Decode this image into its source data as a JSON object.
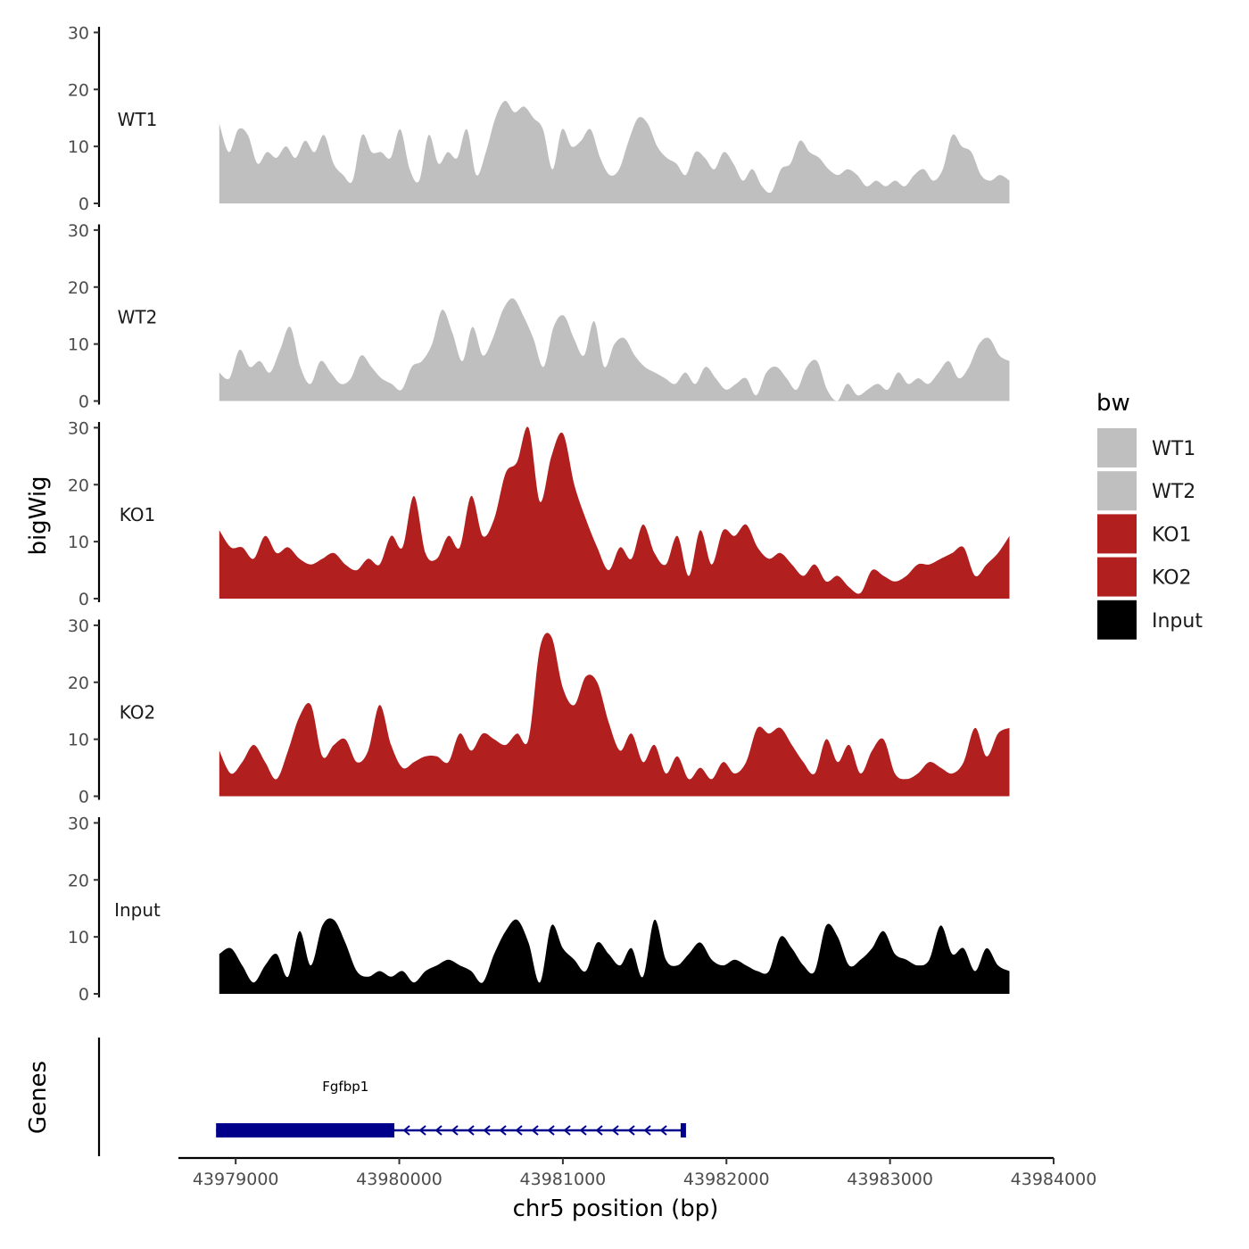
{
  "chart_data": {
    "type": "area",
    "title": "",
    "ylabel": "bigWig",
    "gene_track_label": "Genes",
    "xlabel": "chr5 position (bp)",
    "x_ticks": [
      43979000,
      43980000,
      43981000,
      43982000,
      43983000,
      43984000
    ],
    "x_tick_labels": [
      "43979000",
      "43980000",
      "43981000",
      "43982000",
      "43983000",
      "43984000"
    ],
    "xlim": [
      43978650,
      43984000
    ],
    "ylim": [
      0,
      31
    ],
    "y_ticks": [
      0,
      10,
      20,
      30
    ],
    "y_tick_labels": [
      "0",
      "10",
      "20",
      "30"
    ],
    "region": [
      43978900,
      43983730
    ],
    "series": [
      {
        "name": "WT1",
        "color": "#bfbfbf",
        "values": [
          14,
          9,
          13,
          12,
          7,
          9,
          8,
          10,
          8,
          11,
          9,
          12,
          7,
          5,
          4,
          12,
          9,
          9,
          8,
          13,
          6,
          4,
          12,
          7,
          9,
          8,
          13,
          5,
          9,
          15,
          18,
          16,
          17,
          15,
          13,
          6,
          13,
          10,
          11,
          13,
          8,
          5,
          6,
          11,
          15,
          14,
          10,
          8,
          7,
          5,
          9,
          8,
          6,
          9,
          7,
          4,
          6,
          3,
          2,
          6,
          7,
          11,
          9,
          8,
          6,
          5,
          6,
          5,
          3,
          4,
          3,
          4,
          3,
          5,
          6,
          4,
          6,
          12,
          10,
          9,
          5,
          4,
          5,
          4
        ]
      },
      {
        "name": "WT2",
        "color": "#bfbfbf",
        "values": [
          5,
          4,
          9,
          6,
          7,
          5,
          9,
          13,
          6,
          3,
          7,
          5,
          3,
          4,
          8,
          6,
          4,
          3,
          2,
          6,
          7,
          10,
          16,
          12,
          7,
          13,
          8,
          11,
          16,
          18,
          15,
          11,
          6,
          13,
          15,
          11,
          8,
          14,
          6,
          10,
          11,
          8,
          6,
          5,
          4,
          3,
          5,
          3,
          6,
          4,
          2,
          3,
          4,
          1,
          5,
          6,
          4,
          2,
          6,
          7,
          2,
          0,
          3,
          1,
          2,
          3,
          2,
          5,
          3,
          4,
          3,
          5,
          7,
          4,
          6,
          10,
          11,
          8,
          7
        ]
      },
      {
        "name": "KO1",
        "color": "#b21f1f",
        "values": [
          12,
          9,
          9,
          7,
          11,
          8,
          9,
          7,
          6,
          7,
          8,
          6,
          5,
          7,
          6,
          11,
          9,
          18,
          8,
          7,
          11,
          9,
          18,
          11,
          14,
          22,
          24,
          30,
          17,
          25,
          29,
          20,
          14,
          9,
          5,
          9,
          7,
          13,
          8,
          6,
          11,
          4,
          12,
          6,
          12,
          11,
          13,
          9,
          7,
          8,
          6,
          4,
          6,
          3,
          4,
          2,
          1,
          5,
          4,
          3,
          4,
          6,
          6,
          7,
          8,
          9,
          4,
          6,
          8,
          11
        ]
      },
      {
        "name": "KO2",
        "color": "#b21f1f",
        "values": [
          8,
          4,
          6,
          9,
          6,
          3,
          8,
          14,
          16,
          7,
          9,
          10,
          6,
          8,
          16,
          9,
          5,
          6,
          7,
          7,
          6,
          11,
          8,
          11,
          10,
          9,
          11,
          10,
          26,
          28,
          19,
          16,
          21,
          20,
          13,
          8,
          11,
          6,
          9,
          4,
          7,
          3,
          5,
          3,
          6,
          4,
          6,
          12,
          11,
          12,
          9,
          6,
          4,
          10,
          6,
          9,
          4,
          8,
          10,
          4,
          3,
          4,
          6,
          5,
          4,
          6,
          12,
          7,
          11,
          12
        ]
      },
      {
        "name": "Input",
        "color": "#000000",
        "values": [
          7,
          8,
          5,
          2,
          5,
          7,
          3,
          11,
          5,
          12,
          13,
          9,
          4,
          3,
          4,
          3,
          4,
          2,
          4,
          5,
          6,
          5,
          4,
          2,
          7,
          11,
          13,
          9,
          2,
          12,
          8,
          6,
          4,
          9,
          7,
          5,
          8,
          3,
          13,
          6,
          5,
          7,
          9,
          6,
          5,
          6,
          5,
          4,
          4,
          10,
          8,
          5,
          4,
          12,
          10,
          5,
          6,
          8,
          11,
          7,
          6,
          5,
          6,
          12,
          7,
          8,
          4,
          8,
          5,
          4
        ]
      }
    ],
    "genes": [
      {
        "name": "Fgfbp1",
        "start": 43978880,
        "end": 43981750,
        "strand": "-",
        "color": "#00008b",
        "thick_start": 43978880,
        "thick_end": 43979970,
        "exon2_start": 43981720,
        "exon2_end": 43981750
      }
    ],
    "legend": {
      "title": "bw",
      "position": "right",
      "entries": [
        "WT1",
        "WT2",
        "KO1",
        "KO2",
        "Input"
      ]
    }
  }
}
